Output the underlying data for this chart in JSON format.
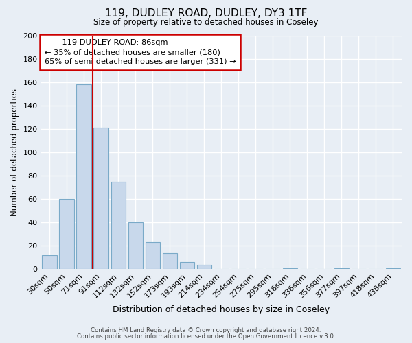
{
  "title": "119, DUDLEY ROAD, DUDLEY, DY3 1TF",
  "subtitle": "Size of property relative to detached houses in Coseley",
  "xlabel": "Distribution of detached houses by size in Coseley",
  "ylabel": "Number of detached properties",
  "bar_color": "#c8d8eb",
  "bar_edge_color": "#7aaac8",
  "categories": [
    "30sqm",
    "50sqm",
    "71sqm",
    "91sqm",
    "112sqm",
    "132sqm",
    "152sqm",
    "173sqm",
    "193sqm",
    "214sqm",
    "234sqm",
    "254sqm",
    "275sqm",
    "295sqm",
    "316sqm",
    "336sqm",
    "356sqm",
    "377sqm",
    "397sqm",
    "418sqm",
    "438sqm"
  ],
  "values": [
    12,
    60,
    158,
    121,
    75,
    40,
    23,
    14,
    6,
    4,
    0,
    0,
    0,
    0,
    1,
    0,
    0,
    1,
    0,
    0,
    1
  ],
  "ylim": [
    0,
    200
  ],
  "yticks": [
    0,
    20,
    40,
    60,
    80,
    100,
    120,
    140,
    160,
    180,
    200
  ],
  "vline_index": 2.5,
  "vline_color": "#cc0000",
  "annotation_title": "119 DUDLEY ROAD: 86sqm",
  "annotation_line1": "← 35% of detached houses are smaller (180)",
  "annotation_line2": "65% of semi-detached houses are larger (331) →",
  "footer1": "Contains HM Land Registry data © Crown copyright and database right 2024.",
  "footer2": "Contains public sector information licensed under the Open Government Licence v.3.0.",
  "background_color": "#e8eef5",
  "grid_color": "#ffffff",
  "annotation_box_color": "#ffffff",
  "annotation_box_edge": "#cc0000"
}
